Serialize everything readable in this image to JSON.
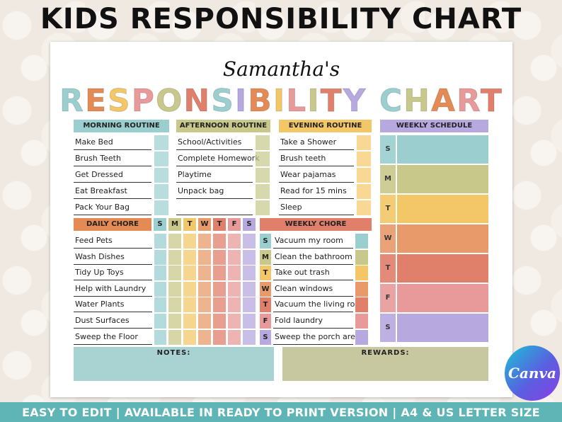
{
  "header_title": "KIDS RESPONSIBILITY CHART",
  "sheet": {
    "name": "Samantha's",
    "title_letters": [
      {
        "ch": "R",
        "color": "#9bcfcf"
      },
      {
        "ch": "E",
        "color": "#e48a55"
      },
      {
        "ch": "S",
        "color": "#f3c768"
      },
      {
        "ch": "P",
        "color": "#e89a9a"
      },
      {
        "ch": "O",
        "color": "#c8c88a"
      },
      {
        "ch": "N",
        "color": "#e07f6a"
      },
      {
        "ch": "S",
        "color": "#9bcfcf"
      },
      {
        "ch": "I",
        "color": "#b7a8e0"
      },
      {
        "ch": "B",
        "color": "#e48a55"
      },
      {
        "ch": "I",
        "color": "#f3c768"
      },
      {
        "ch": "L",
        "color": "#e89a9a"
      },
      {
        "ch": "I",
        "color": "#c8c88a"
      },
      {
        "ch": "T",
        "color": "#e07f6a"
      },
      {
        "ch": "Y",
        "color": "#b7a8e0"
      },
      {
        "ch": " ",
        "color": "#ffffff"
      },
      {
        "ch": "C",
        "color": "#9bcfcf"
      },
      {
        "ch": "H",
        "color": "#c8c88a"
      },
      {
        "ch": "A",
        "color": "#e48a55"
      },
      {
        "ch": "R",
        "color": "#e89a9a"
      },
      {
        "ch": "T",
        "color": "#e07f6a"
      }
    ],
    "morning": {
      "label": "MORNING ROUTINE",
      "color": "#9bcfcf",
      "items": [
        "Make Bed",
        "Brush Teeth",
        "Get Dressed",
        "Eat Breakfast",
        "Pack Your Bag"
      ]
    },
    "afternoon": {
      "label": "AFTERNOON ROUTINE",
      "color": "#c8c88a",
      "items": [
        "School/Activities",
        "Complete Homework",
        "Playtime",
        "Unpack bag",
        ""
      ]
    },
    "evening": {
      "label": "EVENING ROUTINE",
      "color": "#f3c768",
      "items": [
        "Take a Shower",
        "Brush teeth",
        "Wear pajamas",
        "Read for 15 mins",
        "Sleep"
      ]
    },
    "weekly_schedule": {
      "label": "WEEKLY SCHEDULE",
      "color": "#b7a8e0",
      "days": [
        {
          "letter": "S",
          "color": "#9bcfcf"
        },
        {
          "letter": "M",
          "color": "#c8c88a"
        },
        {
          "letter": "T",
          "color": "#f3c768"
        },
        {
          "letter": "W",
          "color": "#e89a6a"
        },
        {
          "letter": "T",
          "color": "#e07f6a"
        },
        {
          "letter": "F",
          "color": "#e89a9a"
        },
        {
          "letter": "S",
          "color": "#b7a8e0"
        }
      ]
    },
    "daily_chore": {
      "label": "DAILY CHORE",
      "color": "#e48a55",
      "day_headers": [
        "S",
        "M",
        "T",
        "W",
        "T",
        "F",
        "S"
      ],
      "day_colors": [
        "#9bcfcf",
        "#c8c88a",
        "#f3c768",
        "#e89a6a",
        "#e07f6a",
        "#e89a9a",
        "#b7a8e0"
      ],
      "items": [
        "Feed Pets",
        "Wash Dishes",
        "Tidy Up Toys",
        "Help with Laundry",
        "Water Plants",
        "Dust Surfaces",
        "Sweep the Floor"
      ]
    },
    "weekly_chore": {
      "label": "WEEKLY CHORE",
      "color": "#e07f6a",
      "rows": [
        {
          "letter": "S",
          "item": "Vacuum my room",
          "color": "#9bcfcf"
        },
        {
          "letter": "M",
          "item": "Clean the bathroom",
          "color": "#c8c88a"
        },
        {
          "letter": "T",
          "item": "Take out trash",
          "color": "#f3c768"
        },
        {
          "letter": "W",
          "item": "Clean windows",
          "color": "#e89a6a"
        },
        {
          "letter": "T",
          "item": "Vacuum the living room",
          "color": "#e07f6a"
        },
        {
          "letter": "F",
          "item": "Fold laundry",
          "color": "#e89a9a"
        },
        {
          "letter": "S",
          "item": "Sweep the porch area",
          "color": "#b7a8e0"
        }
      ]
    },
    "notes_label": "NOTES:",
    "notes_color": "#a9d3d3",
    "rewards_label": "REWARDS:",
    "rewards_color": "#c8c8a0"
  },
  "badge": {
    "text": "Canva"
  },
  "footer": "EASY TO EDIT | AVAILABLE IN READY TO PRINT VERSION | A4 & US LETTER SIZE"
}
